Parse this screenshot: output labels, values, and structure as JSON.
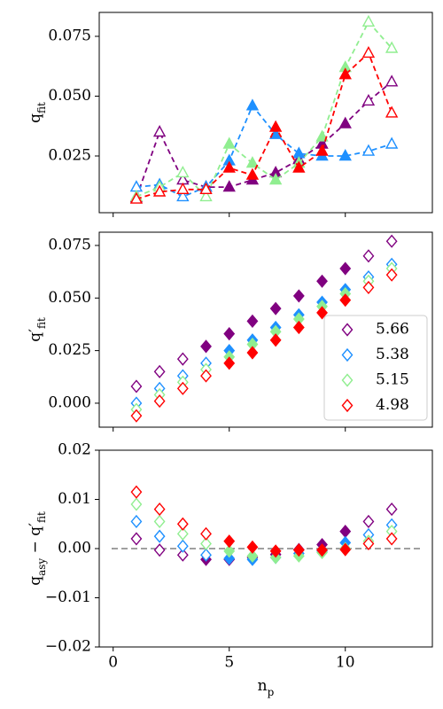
{
  "chart_data": [
    {
      "type": "line",
      "marker": "triangle",
      "x": [
        1,
        2,
        3,
        4,
        5,
        6,
        7,
        8,
        9,
        10,
        11,
        12
      ],
      "xlim": [
        -0.6,
        13.75
      ],
      "xticks": [
        0,
        5,
        10
      ],
      "ylim": [
        0.0013,
        0.085
      ],
      "yticks": [
        0.025,
        {
          "value": 0.05,
          "label": "0.050"
        },
        0.075
      ],
      "ylabel": [
        {
          "text": "q"
        },
        {
          "text": "fit",
          "sub": true
        }
      ],
      "series": [
        {
          "color": "#800080",
          "values": [
            0.0076,
            0.035,
            0.015,
            0.012,
            0.012,
            0.015,
            0.018,
            0.0235,
            0.03,
            0.0385,
            0.048,
            0.056
          ],
          "filled": [
            false,
            false,
            false,
            true,
            true,
            true,
            true,
            true,
            true,
            true,
            false,
            false
          ]
        },
        {
          "color": "#1e90ff",
          "values": [
            0.012,
            0.013,
            0.008,
            0.012,
            0.023,
            0.046,
            0.034,
            0.026,
            0.025,
            0.025,
            0.027,
            0.03
          ],
          "filled": [
            false,
            false,
            false,
            false,
            true,
            true,
            true,
            true,
            true,
            true,
            false,
            false
          ]
        },
        {
          "color": "#90ee90",
          "values": [
            0.008,
            0.012,
            0.018,
            0.008,
            0.03,
            0.022,
            0.015,
            0.022,
            0.033,
            0.062,
            0.081,
            0.07
          ],
          "filled": [
            false,
            false,
            false,
            false,
            true,
            true,
            true,
            true,
            true,
            true,
            false,
            false
          ]
        },
        {
          "color": "#ff0000",
          "values": [
            0.007,
            0.01,
            0.011,
            0.011,
            0.02,
            0.017,
            0.037,
            0.02,
            0.027,
            0.059,
            0.068,
            0.043
          ],
          "filled": [
            false,
            false,
            false,
            false,
            true,
            true,
            true,
            true,
            true,
            true,
            false,
            false
          ]
        }
      ]
    },
    {
      "type": "scatter",
      "marker": "diamond",
      "x": [
        1,
        2,
        3,
        4,
        5,
        6,
        7,
        8,
        9,
        10,
        11,
        12
      ],
      "xlim": [
        -0.6,
        13.75
      ],
      "xticks": [
        0,
        5,
        10
      ],
      "ylim": [
        -0.0114,
        0.0813
      ],
      "yticks": [
        {
          "value": 0,
          "label": "0.000"
        },
        0.025,
        {
          "value": 0.05,
          "label": "0.050"
        },
        0.075
      ],
      "ylabel": [
        {
          "text": "q′"
        },
        {
          "text": "fit",
          "sub": true
        }
      ],
      "legend": "lower right",
      "series": [
        {
          "name": "5.66",
          "color": "#800080",
          "values": [
            0.008,
            0.015,
            0.021,
            0.027,
            0.033,
            0.039,
            0.045,
            0.051,
            0.058,
            0.064,
            0.07,
            0.077
          ],
          "filled": [
            false,
            false,
            false,
            true,
            true,
            true,
            true,
            true,
            true,
            true,
            false,
            false
          ]
        },
        {
          "name": "5.38",
          "color": "#1e90ff",
          "values": [
            0.0,
            0.007,
            0.013,
            0.019,
            0.025,
            0.03,
            0.036,
            0.042,
            0.048,
            0.054,
            0.06,
            0.066
          ],
          "filled": [
            false,
            false,
            false,
            false,
            true,
            true,
            true,
            true,
            true,
            true,
            false,
            false
          ]
        },
        {
          "name": "5.15",
          "color": "#90ee90",
          "values": [
            -0.003,
            0.004,
            0.01,
            0.016,
            0.022,
            0.028,
            0.034,
            0.04,
            0.046,
            0.052,
            0.058,
            0.064
          ],
          "filled": [
            false,
            false,
            false,
            false,
            true,
            true,
            true,
            true,
            true,
            true,
            false,
            false
          ]
        },
        {
          "name": "4.98",
          "color": "#ff0000",
          "values": [
            -0.006,
            0.001,
            0.007,
            0.013,
            0.019,
            0.024,
            0.03,
            0.036,
            0.043,
            0.049,
            0.055,
            0.061
          ],
          "filled": [
            false,
            false,
            false,
            false,
            true,
            true,
            true,
            true,
            true,
            true,
            false,
            false
          ]
        }
      ]
    },
    {
      "type": "scatter",
      "marker": "diamond",
      "x": [
        1,
        2,
        3,
        4,
        5,
        6,
        7,
        8,
        9,
        10,
        11,
        12
      ],
      "xlim": [
        -0.6,
        13.75
      ],
      "xticks": [
        0,
        5,
        10
      ],
      "xlabel": [
        {
          "text": "n"
        },
        {
          "text": "p",
          "sub": true
        }
      ],
      "ylim": [
        -0.02,
        0.02
      ],
      "yticks": [
        {
          "value": -0.02,
          "label": "−0.02"
        },
        {
          "value": -0.01,
          "label": "−0.01"
        },
        {
          "value": 0,
          "label": "0.00"
        },
        0.01,
        0.02
      ],
      "ylabel": [
        {
          "text": "q"
        },
        {
          "text": "asy",
          "sub": true
        },
        {
          "text": " − q′"
        },
        {
          "text": "fit",
          "sub": true
        }
      ],
      "hline": 0,
      "series": [
        {
          "color": "#800080",
          "values": [
            0.002,
            -0.0003,
            -0.0013,
            -0.0022,
            -0.0022,
            -0.0018,
            -0.0012,
            -0.0002,
            0.0008,
            0.0035,
            0.0055,
            0.008
          ],
          "filled": [
            false,
            false,
            false,
            true,
            true,
            true,
            true,
            true,
            true,
            true,
            false,
            false
          ]
        },
        {
          "color": "#1e90ff",
          "values": [
            0.0055,
            0.0025,
            0.0005,
            -0.0013,
            -0.002,
            -0.0022,
            -0.0018,
            -0.001,
            -0.0005,
            0.0012,
            0.0028,
            0.0048
          ],
          "filled": [
            false,
            false,
            false,
            false,
            true,
            true,
            true,
            true,
            true,
            true,
            false,
            false
          ]
        },
        {
          "color": "#90ee90",
          "values": [
            0.009,
            0.0055,
            0.003,
            0.001,
            -0.0005,
            -0.0015,
            -0.0018,
            -0.0015,
            -0.0008,
            0,
            0.0015,
            0.0035
          ],
          "filled": [
            false,
            false,
            false,
            false,
            true,
            true,
            true,
            true,
            true,
            true,
            false,
            false
          ]
        },
        {
          "color": "#ff0000",
          "values": [
            0.0115,
            0.008,
            0.005,
            0.003,
            0.0015,
            0.0003,
            -0.0005,
            -0.0003,
            -0.0003,
            -0.0002,
            0.001,
            0.002
          ],
          "filled": [
            false,
            false,
            false,
            false,
            true,
            true,
            true,
            true,
            true,
            true,
            false,
            false
          ]
        }
      ]
    }
  ]
}
